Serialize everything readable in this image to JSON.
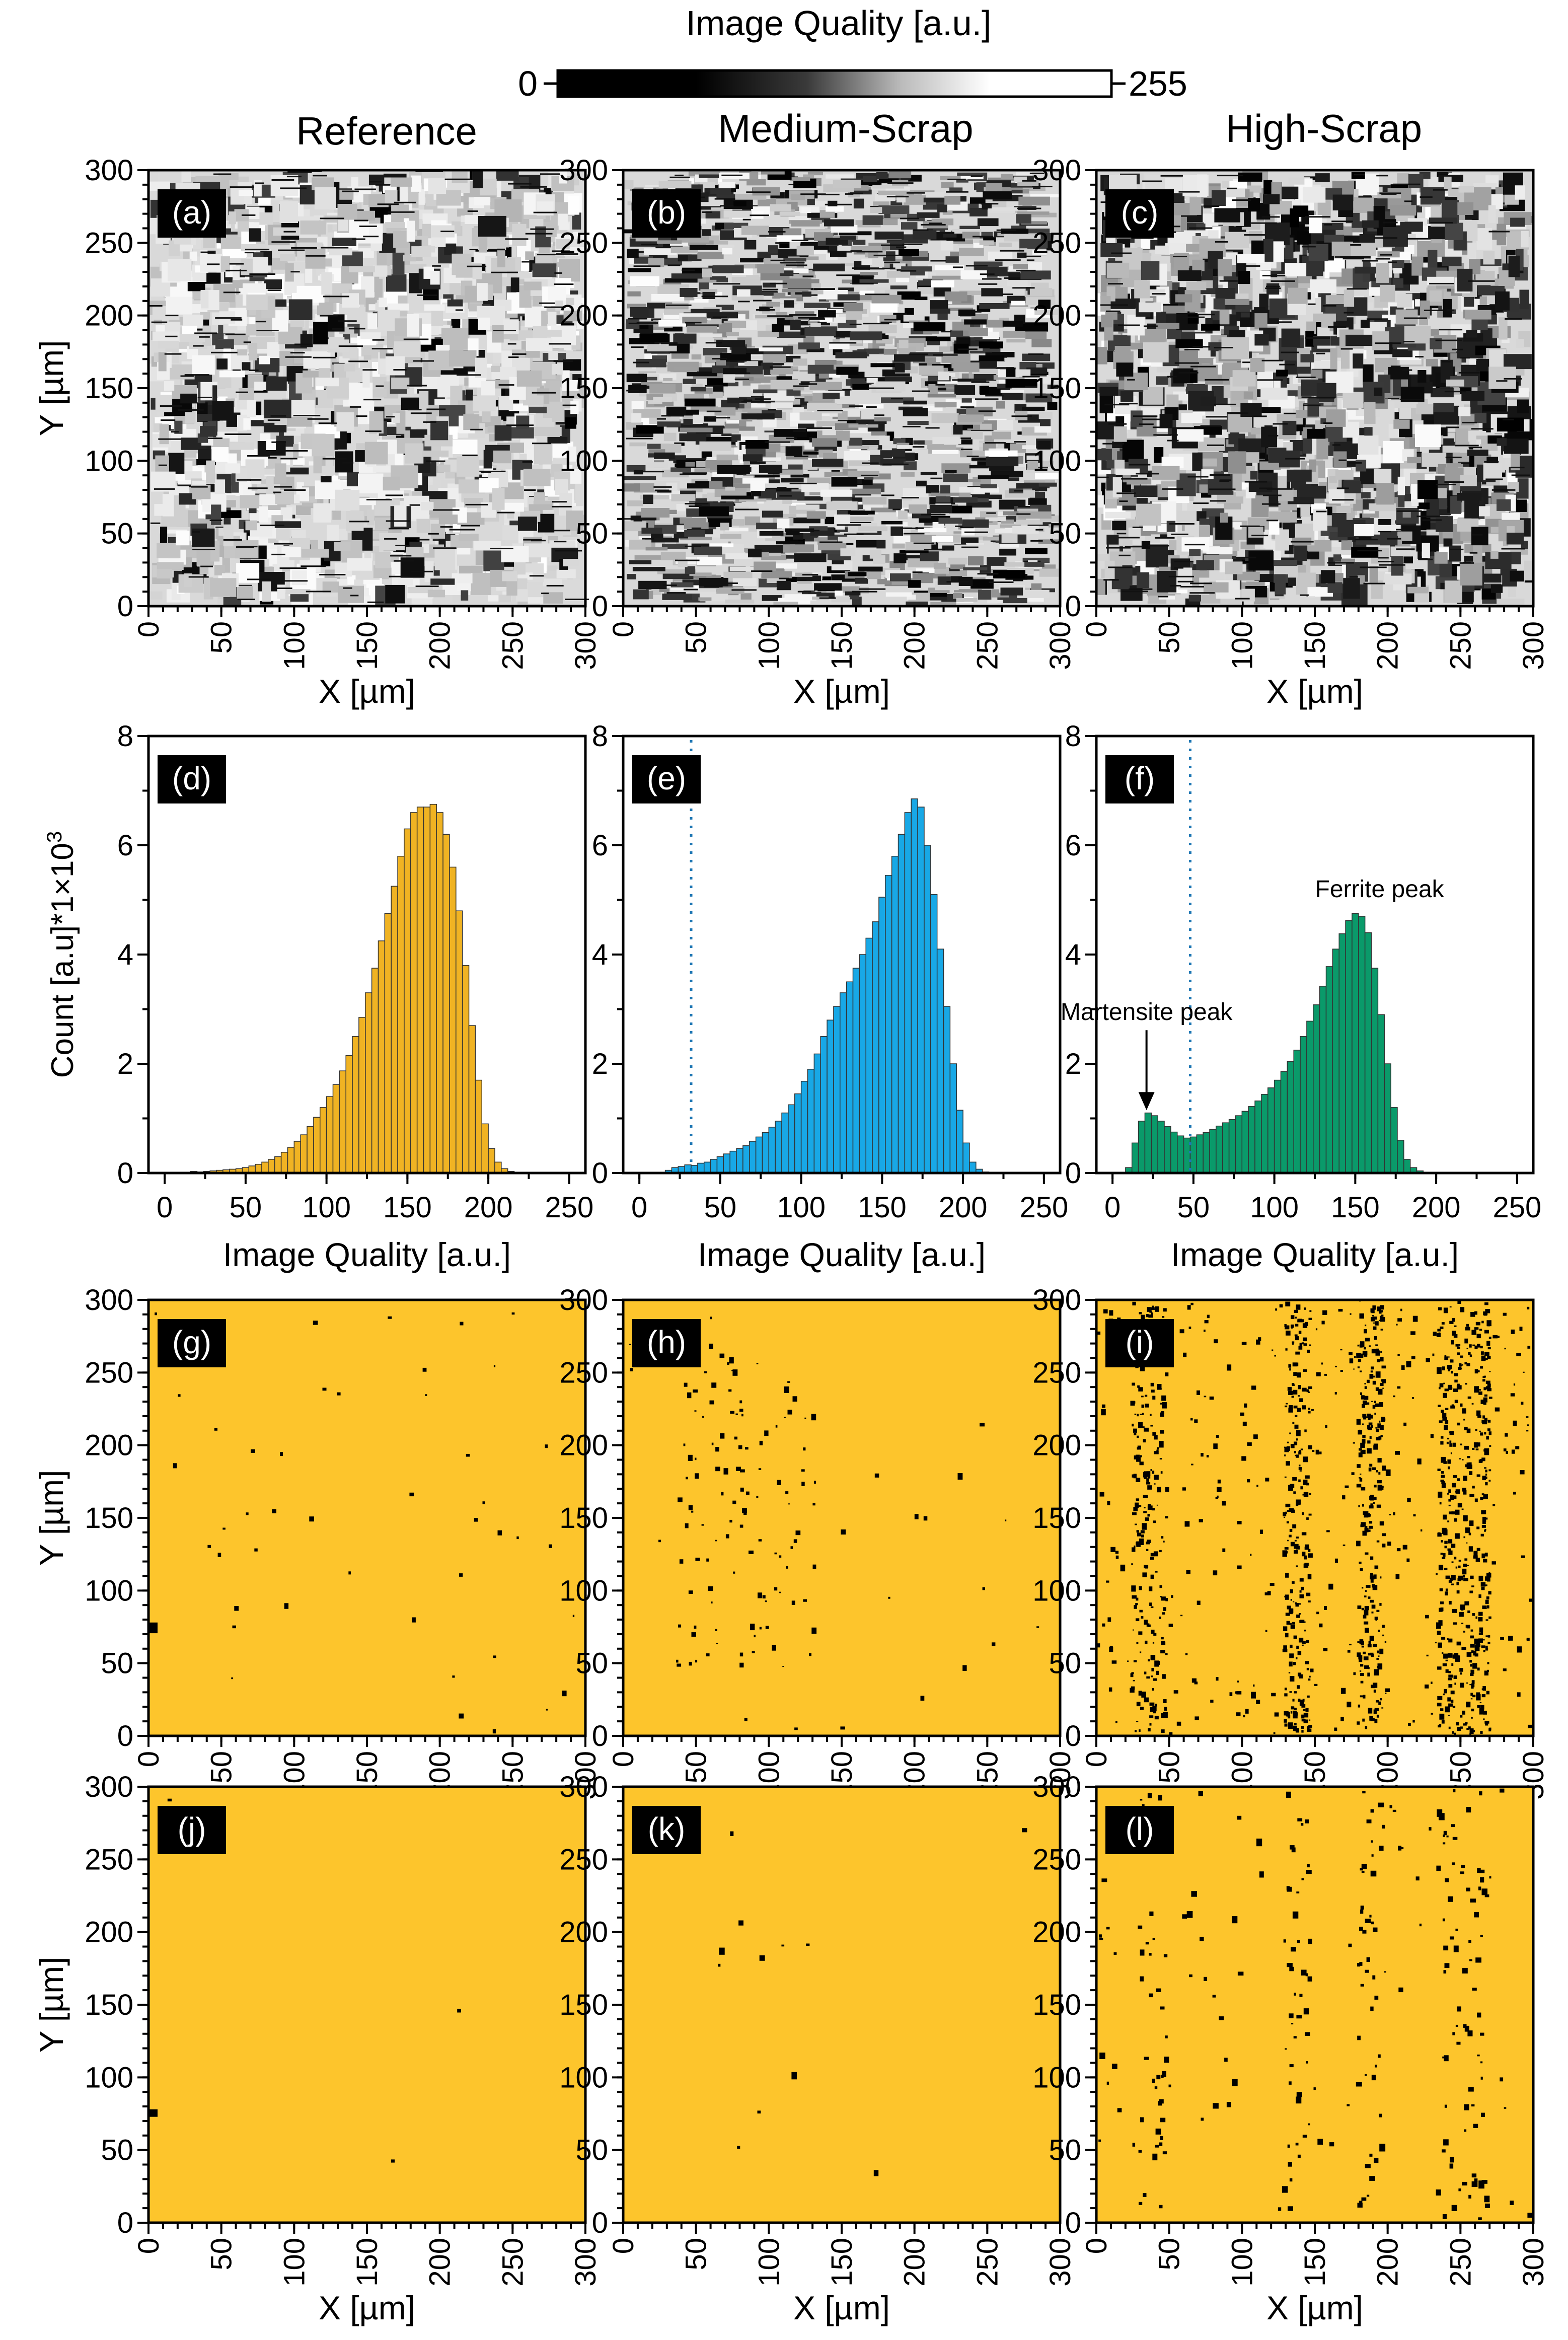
{
  "colorbar": {
    "title": "Image Quality [a.u.]",
    "min_label": "0",
    "max_label": "255"
  },
  "column_titles": [
    "Reference",
    "Medium-Scrap",
    "High-Scrap"
  ],
  "colors": {
    "reference": "#f0b323",
    "medium": "#18a8e6",
    "high": "#0a9a6a",
    "phase_background": "#fdc52c",
    "martensite": "#000000",
    "threshold_line": "#1f77b4"
  },
  "chart_data": [
    {
      "type": "heatmap",
      "panel": "(a)",
      "sample": "Reference",
      "kind": "image-quality-map",
      "xlabel": "X [µm]",
      "ylabel": "Y [µm]",
      "xlim": [
        0,
        300
      ],
      "ylim": [
        0,
        300
      ],
      "xticks": [
        0,
        50,
        100,
        150,
        200,
        250,
        300
      ],
      "yticks": [
        0,
        50,
        100,
        150,
        200,
        250,
        300
      ],
      "colormap": "grayscale 0–255"
    },
    {
      "type": "heatmap",
      "panel": "(b)",
      "sample": "Medium-Scrap",
      "kind": "image-quality-map",
      "xlabel": "X [µm]",
      "ylabel": "",
      "xlim": [
        0,
        300
      ],
      "ylim": [
        0,
        300
      ],
      "xticks": [
        0,
        50,
        100,
        150,
        200,
        250,
        300
      ],
      "yticks": [
        0,
        50,
        100,
        150,
        200,
        250,
        300
      ],
      "colormap": "grayscale 0–255"
    },
    {
      "type": "heatmap",
      "panel": "(c)",
      "sample": "High-Scrap",
      "kind": "image-quality-map",
      "xlabel": "X [µm]",
      "ylabel": "",
      "xlim": [
        0,
        300
      ],
      "ylim": [
        0,
        300
      ],
      "xticks": [
        0,
        50,
        100,
        150,
        200,
        250,
        300
      ],
      "yticks": [
        0,
        50,
        100,
        150,
        200,
        250,
        300
      ],
      "colormap": "grayscale 0–255"
    },
    {
      "type": "bar",
      "panel": "(d)",
      "sample": "Reference",
      "xlabel": "Image Quality [a.u.]",
      "ylabel": "Count [a.u]*1×10³",
      "xlim": [
        -10,
        260
      ],
      "ylim": [
        0,
        8
      ],
      "xticks": [
        0,
        50,
        100,
        150,
        200,
        250
      ],
      "yticks": [
        0,
        2,
        4,
        6,
        8
      ],
      "bin_width": 4,
      "bin_start": 0,
      "values": [
        0,
        0,
        0,
        0.01,
        0.03,
        0.02,
        0.03,
        0.04,
        0.05,
        0.06,
        0.07,
        0.08,
        0.1,
        0.13,
        0.16,
        0.2,
        0.25,
        0.3,
        0.38,
        0.47,
        0.58,
        0.7,
        0.85,
        1.02,
        1.2,
        1.4,
        1.62,
        1.87,
        2.15,
        2.5,
        2.85,
        3.3,
        3.75,
        4.25,
        4.75,
        5.25,
        5.8,
        6.3,
        6.6,
        6.7,
        6.7,
        6.75,
        6.6,
        6.2,
        5.6,
        4.8,
        3.8,
        2.7,
        1.7,
        0.9,
        0.45,
        0.2,
        0.08,
        0.03,
        0.01,
        0,
        0,
        0,
        0,
        0,
        0,
        0,
        0,
        0,
        0
      ]
    },
    {
      "type": "bar",
      "panel": "(e)",
      "sample": "Medium-Scrap",
      "xlabel": "Image Quality [a.u.]",
      "ylabel": "",
      "xlim": [
        -10,
        260
      ],
      "ylim": [
        0,
        8
      ],
      "xticks": [
        0,
        50,
        100,
        150,
        200,
        250
      ],
      "yticks": [
        0,
        2,
        4,
        6,
        8
      ],
      "bin_width": 4,
      "bin_start": 0,
      "threshold": 32,
      "values": [
        0,
        0,
        0,
        0,
        0.05,
        0.1,
        0.12,
        0.15,
        0.14,
        0.18,
        0.2,
        0.25,
        0.3,
        0.35,
        0.4,
        0.45,
        0.5,
        0.58,
        0.66,
        0.74,
        0.84,
        0.95,
        1.1,
        1.25,
        1.45,
        1.68,
        1.9,
        2.18,
        2.5,
        2.8,
        3.05,
        3.3,
        3.5,
        3.75,
        4.0,
        4.3,
        4.6,
        5.05,
        5.45,
        5.8,
        6.2,
        6.6,
        6.85,
        6.7,
        6.0,
        5.1,
        4.1,
        3.05,
        2.0,
        1.15,
        0.55,
        0.2,
        0.07,
        0.02,
        0.01,
        0,
        0,
        0,
        0,
        0,
        0,
        0,
        0,
        0,
        0
      ]
    },
    {
      "type": "bar",
      "panel": "(f)",
      "sample": "High-Scrap",
      "xlabel": "Image Quality [a.u.]",
      "ylabel": "",
      "xlim": [
        -10,
        260
      ],
      "ylim": [
        0,
        8
      ],
      "xticks": [
        0,
        50,
        100,
        150,
        200,
        250
      ],
      "yticks": [
        0,
        2,
        4,
        6,
        8
      ],
      "bin_width": 4,
      "bin_start": 0,
      "threshold": 48,
      "annotations": [
        {
          "text": "Ferrite peak",
          "x": 165,
          "y": 5.05
        },
        {
          "text": "Martensite peak",
          "x": 21,
          "y": 2.8,
          "arrow_to": [
            21,
            1.15
          ]
        }
      ],
      "values": [
        0,
        0,
        0.1,
        0.55,
        0.95,
        1.1,
        1.05,
        0.95,
        0.85,
        0.75,
        0.68,
        0.64,
        0.66,
        0.7,
        0.74,
        0.8,
        0.86,
        0.92,
        0.98,
        1.05,
        1.13,
        1.22,
        1.32,
        1.44,
        1.56,
        1.7,
        1.86,
        2.04,
        2.25,
        2.5,
        2.78,
        3.08,
        3.42,
        3.78,
        4.1,
        4.38,
        4.62,
        4.75,
        4.7,
        4.4,
        3.75,
        2.9,
        2.0,
        1.2,
        0.6,
        0.25,
        0.1,
        0.04,
        0.01,
        0,
        0,
        0,
        0,
        0,
        0,
        0,
        0,
        0,
        0,
        0,
        0,
        0,
        0,
        0,
        0
      ]
    },
    {
      "type": "heatmap",
      "panel": "(g)",
      "sample": "Reference",
      "kind": "martensite-map",
      "xlabel": "",
      "ylabel": "Y [µm]",
      "xlim": [
        0,
        300
      ],
      "ylim": [
        0,
        300
      ],
      "xticks": [
        0,
        50,
        100,
        150,
        200,
        250,
        300
      ],
      "yticks": [
        0,
        50,
        100,
        150,
        200,
        250,
        300
      ]
    },
    {
      "type": "heatmap",
      "panel": "(h)",
      "sample": "Medium-Scrap",
      "kind": "martensite-map",
      "xlabel": "",
      "ylabel": "",
      "xlim": [
        0,
        300
      ],
      "ylim": [
        0,
        300
      ],
      "xticks": [
        0,
        50,
        100,
        150,
        200,
        250,
        300
      ],
      "yticks": [
        0,
        50,
        100,
        150,
        200,
        250,
        300
      ]
    },
    {
      "type": "heatmap",
      "panel": "(i)",
      "sample": "High-Scrap",
      "kind": "martensite-map",
      "xlabel": "",
      "ylabel": "",
      "xlim": [
        0,
        300
      ],
      "ylim": [
        0,
        300
      ],
      "xticks": [
        0,
        50,
        100,
        150,
        200,
        250,
        300
      ],
      "yticks": [
        0,
        50,
        100,
        150,
        200,
        250,
        300
      ]
    },
    {
      "type": "heatmap",
      "panel": "(j)",
      "sample": "Reference",
      "kind": "martensite-map-filtered",
      "xlabel": "X [µm]",
      "ylabel": "Y [µm]",
      "xlim": [
        0,
        300
      ],
      "ylim": [
        0,
        300
      ],
      "xticks": [
        0,
        50,
        100,
        150,
        200,
        250,
        300
      ],
      "yticks": [
        0,
        50,
        100,
        150,
        200,
        250,
        300
      ]
    },
    {
      "type": "heatmap",
      "panel": "(k)",
      "sample": "Medium-Scrap",
      "kind": "martensite-map-filtered",
      "xlabel": "X [µm]",
      "ylabel": "",
      "xlim": [
        0,
        300
      ],
      "ylim": [
        0,
        300
      ],
      "xticks": [
        0,
        50,
        100,
        150,
        200,
        250,
        300
      ],
      "yticks": [
        0,
        50,
        100,
        150,
        200,
        250,
        300
      ]
    },
    {
      "type": "heatmap",
      "panel": "(l)",
      "sample": "High-Scrap",
      "kind": "martensite-map-filtered",
      "xlabel": "X [µm]",
      "ylabel": "",
      "xlim": [
        0,
        300
      ],
      "ylim": [
        0,
        300
      ],
      "xticks": [
        0,
        50,
        100,
        150,
        200,
        250,
        300
      ],
      "yticks": [
        0,
        50,
        100,
        150,
        200,
        250,
        300
      ]
    }
  ]
}
